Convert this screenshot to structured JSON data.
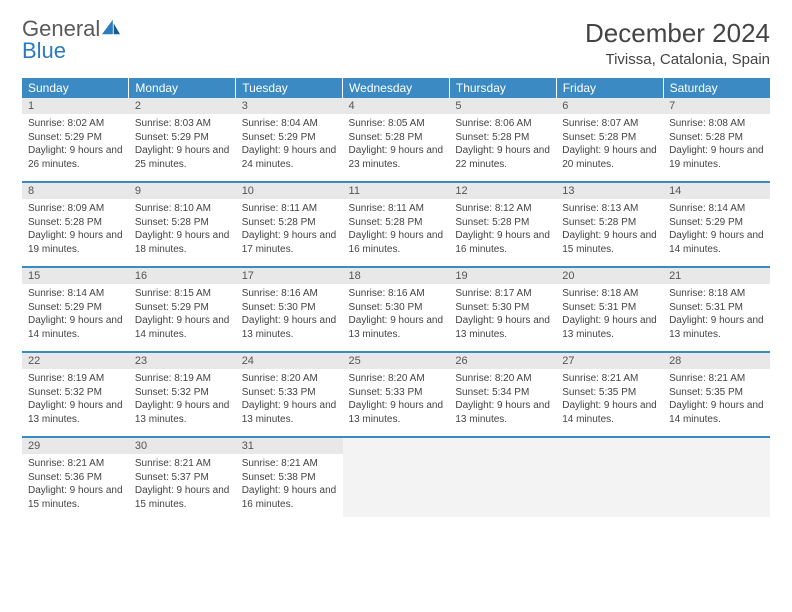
{
  "brand": {
    "part1": "General",
    "part2": "Blue"
  },
  "title": "December 2024",
  "location": "Tivissa, Catalonia, Spain",
  "colors": {
    "header_bg": "#3b8ac4",
    "header_text": "#ffffff",
    "daynum_bg": "#e8e8e8",
    "row_divider": "#3b8ac4",
    "text": "#444444",
    "brand_gray": "#5a5a5a",
    "brand_blue": "#2b7bbf"
  },
  "weekdays": [
    "Sunday",
    "Monday",
    "Tuesday",
    "Wednesday",
    "Thursday",
    "Friday",
    "Saturday"
  ],
  "days": [
    {
      "n": "1",
      "sunrise": "8:02 AM",
      "sunset": "5:29 PM",
      "daylight": "9 hours and 26 minutes."
    },
    {
      "n": "2",
      "sunrise": "8:03 AM",
      "sunset": "5:29 PM",
      "daylight": "9 hours and 25 minutes."
    },
    {
      "n": "3",
      "sunrise": "8:04 AM",
      "sunset": "5:29 PM",
      "daylight": "9 hours and 24 minutes."
    },
    {
      "n": "4",
      "sunrise": "8:05 AM",
      "sunset": "5:28 PM",
      "daylight": "9 hours and 23 minutes."
    },
    {
      "n": "5",
      "sunrise": "8:06 AM",
      "sunset": "5:28 PM",
      "daylight": "9 hours and 22 minutes."
    },
    {
      "n": "6",
      "sunrise": "8:07 AM",
      "sunset": "5:28 PM",
      "daylight": "9 hours and 20 minutes."
    },
    {
      "n": "7",
      "sunrise": "8:08 AM",
      "sunset": "5:28 PM",
      "daylight": "9 hours and 19 minutes."
    },
    {
      "n": "8",
      "sunrise": "8:09 AM",
      "sunset": "5:28 PM",
      "daylight": "9 hours and 19 minutes."
    },
    {
      "n": "9",
      "sunrise": "8:10 AM",
      "sunset": "5:28 PM",
      "daylight": "9 hours and 18 minutes."
    },
    {
      "n": "10",
      "sunrise": "8:11 AM",
      "sunset": "5:28 PM",
      "daylight": "9 hours and 17 minutes."
    },
    {
      "n": "11",
      "sunrise": "8:11 AM",
      "sunset": "5:28 PM",
      "daylight": "9 hours and 16 minutes."
    },
    {
      "n": "12",
      "sunrise": "8:12 AM",
      "sunset": "5:28 PM",
      "daylight": "9 hours and 16 minutes."
    },
    {
      "n": "13",
      "sunrise": "8:13 AM",
      "sunset": "5:28 PM",
      "daylight": "9 hours and 15 minutes."
    },
    {
      "n": "14",
      "sunrise": "8:14 AM",
      "sunset": "5:29 PM",
      "daylight": "9 hours and 14 minutes."
    },
    {
      "n": "15",
      "sunrise": "8:14 AM",
      "sunset": "5:29 PM",
      "daylight": "9 hours and 14 minutes."
    },
    {
      "n": "16",
      "sunrise": "8:15 AM",
      "sunset": "5:29 PM",
      "daylight": "9 hours and 14 minutes."
    },
    {
      "n": "17",
      "sunrise": "8:16 AM",
      "sunset": "5:30 PM",
      "daylight": "9 hours and 13 minutes."
    },
    {
      "n": "18",
      "sunrise": "8:16 AM",
      "sunset": "5:30 PM",
      "daylight": "9 hours and 13 minutes."
    },
    {
      "n": "19",
      "sunrise": "8:17 AM",
      "sunset": "5:30 PM",
      "daylight": "9 hours and 13 minutes."
    },
    {
      "n": "20",
      "sunrise": "8:18 AM",
      "sunset": "5:31 PM",
      "daylight": "9 hours and 13 minutes."
    },
    {
      "n": "21",
      "sunrise": "8:18 AM",
      "sunset": "5:31 PM",
      "daylight": "9 hours and 13 minutes."
    },
    {
      "n": "22",
      "sunrise": "8:19 AM",
      "sunset": "5:32 PM",
      "daylight": "9 hours and 13 minutes."
    },
    {
      "n": "23",
      "sunrise": "8:19 AM",
      "sunset": "5:32 PM",
      "daylight": "9 hours and 13 minutes."
    },
    {
      "n": "24",
      "sunrise": "8:20 AM",
      "sunset": "5:33 PM",
      "daylight": "9 hours and 13 minutes."
    },
    {
      "n": "25",
      "sunrise": "8:20 AM",
      "sunset": "5:33 PM",
      "daylight": "9 hours and 13 minutes."
    },
    {
      "n": "26",
      "sunrise": "8:20 AM",
      "sunset": "5:34 PM",
      "daylight": "9 hours and 13 minutes."
    },
    {
      "n": "27",
      "sunrise": "8:21 AM",
      "sunset": "5:35 PM",
      "daylight": "9 hours and 14 minutes."
    },
    {
      "n": "28",
      "sunrise": "8:21 AM",
      "sunset": "5:35 PM",
      "daylight": "9 hours and 14 minutes."
    },
    {
      "n": "29",
      "sunrise": "8:21 AM",
      "sunset": "5:36 PM",
      "daylight": "9 hours and 15 minutes."
    },
    {
      "n": "30",
      "sunrise": "8:21 AM",
      "sunset": "5:37 PM",
      "daylight": "9 hours and 15 minutes."
    },
    {
      "n": "31",
      "sunrise": "8:21 AM",
      "sunset": "5:38 PM",
      "daylight": "9 hours and 16 minutes."
    }
  ],
  "labels": {
    "sunrise": "Sunrise:",
    "sunset": "Sunset:",
    "daylight": "Daylight:"
  }
}
